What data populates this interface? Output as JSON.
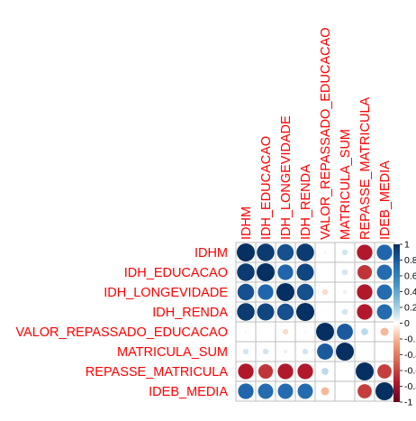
{
  "chart_data": {
    "type": "heatmap",
    "variables": [
      "IDHM",
      "IDH_EDUCACAO",
      "IDH_LONGEVIDADE",
      "IDH_RENDA",
      "VALOR_REPASSADO_EDUCACAO",
      "MATRICULA_SUM",
      "REPASSE_MATRICULA",
      "IDEB_MEDIA"
    ],
    "matrix": [
      [
        1.0,
        0.95,
        0.85,
        0.95,
        0.03,
        0.1,
        -0.75,
        0.75
      ],
      [
        0.95,
        1.0,
        0.75,
        0.9,
        0.0,
        0.1,
        -0.65,
        0.72
      ],
      [
        0.85,
        0.75,
        1.0,
        0.85,
        -0.1,
        0.05,
        -0.75,
        0.72
      ],
      [
        0.95,
        0.9,
        0.85,
        1.0,
        0.02,
        0.1,
        -0.75,
        0.72
      ],
      [
        0.03,
        0.0,
        -0.1,
        0.02,
        1.0,
        0.8,
        0.15,
        -0.2
      ],
      [
        0.1,
        0.1,
        0.05,
        0.1,
        0.8,
        1.0,
        0.0,
        0.0
      ],
      [
        -0.75,
        -0.65,
        -0.75,
        -0.75,
        0.15,
        0.0,
        1.0,
        -0.62
      ],
      [
        0.75,
        0.72,
        0.72,
        0.72,
        -0.2,
        0.0,
        -0.62,
        1.0
      ]
    ],
    "colorbar_ticks": [
      "1",
      "0.8",
      "0.6",
      "0.4",
      "0.2",
      "0",
      "-0.2",
      "-0.4",
      "-0.6",
      "-0.8",
      "-1"
    ],
    "colorbar_range": [
      -1,
      1
    ],
    "colors": {
      "label": "#ff0000",
      "grid": "#bebebe",
      "positive_end": "#053061",
      "negative_end": "#67001f",
      "neutral": "#ffffff"
    }
  }
}
